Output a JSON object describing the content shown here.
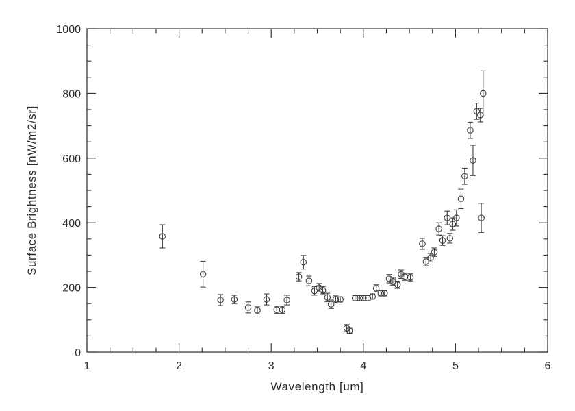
{
  "chart_data": {
    "type": "scatter",
    "title": "",
    "xlabel": "Wavelength [um]",
    "ylabel": "Surface Brightness [nW/m2/sr]",
    "xlim": [
      1,
      6
    ],
    "ylim": [
      0,
      1000
    ],
    "xticks": [
      1,
      2,
      3,
      4,
      5,
      6
    ],
    "yticks": [
      0,
      200,
      400,
      600,
      800,
      1000
    ],
    "x_minor_interval": 0.25,
    "y_minor_interval": 50,
    "grid": false,
    "legend": "none",
    "marker": "open-circle",
    "error_bars": true,
    "axis_color": "#2b2b2b",
    "marker_color": "#3d3d3d",
    "points": [
      {
        "x": 1.82,
        "y": 358,
        "e": 36
      },
      {
        "x": 2.26,
        "y": 241,
        "e": 40
      },
      {
        "x": 2.45,
        "y": 161,
        "e": 17
      },
      {
        "x": 2.6,
        "y": 163,
        "e": 13
      },
      {
        "x": 2.75,
        "y": 138,
        "e": 17
      },
      {
        "x": 2.85,
        "y": 129,
        "e": 11
      },
      {
        "x": 2.95,
        "y": 163,
        "e": 17
      },
      {
        "x": 3.06,
        "y": 131,
        "e": 11
      },
      {
        "x": 3.12,
        "y": 131,
        "e": 11
      },
      {
        "x": 3.17,
        "y": 161,
        "e": 15
      },
      {
        "x": 3.3,
        "y": 233,
        "e": 13
      },
      {
        "x": 3.35,
        "y": 278,
        "e": 21
      },
      {
        "x": 3.41,
        "y": 220,
        "e": 15
      },
      {
        "x": 3.47,
        "y": 189,
        "e": 13
      },
      {
        "x": 3.52,
        "y": 199,
        "e": 13
      },
      {
        "x": 3.56,
        "y": 191,
        "e": 11
      },
      {
        "x": 3.61,
        "y": 169,
        "e": 13
      },
      {
        "x": 3.65,
        "y": 148,
        "e": 13
      },
      {
        "x": 3.7,
        "y": 163,
        "e": 11
      },
      {
        "x": 3.75,
        "y": 163,
        "e": 8
      },
      {
        "x": 3.82,
        "y": 74,
        "e": 11
      },
      {
        "x": 3.85,
        "y": 66,
        "e": 8
      },
      {
        "x": 3.91,
        "y": 167,
        "e": 8
      },
      {
        "x": 3.96,
        "y": 167,
        "e": 8
      },
      {
        "x": 4.0,
        "y": 167,
        "e": 8
      },
      {
        "x": 4.05,
        "y": 167,
        "e": 8
      },
      {
        "x": 4.1,
        "y": 172,
        "e": 8
      },
      {
        "x": 4.14,
        "y": 197,
        "e": 11
      },
      {
        "x": 4.19,
        "y": 182,
        "e": 8
      },
      {
        "x": 4.23,
        "y": 182,
        "e": 8
      },
      {
        "x": 4.28,
        "y": 227,
        "e": 13
      },
      {
        "x": 4.32,
        "y": 218,
        "e": 11
      },
      {
        "x": 4.37,
        "y": 208,
        "e": 11
      },
      {
        "x": 4.41,
        "y": 241,
        "e": 13
      },
      {
        "x": 4.45,
        "y": 233,
        "e": 11
      },
      {
        "x": 4.51,
        "y": 231,
        "e": 11
      },
      {
        "x": 4.64,
        "y": 335,
        "e": 17
      },
      {
        "x": 4.68,
        "y": 280,
        "e": 13
      },
      {
        "x": 4.73,
        "y": 292,
        "e": 13
      },
      {
        "x": 4.77,
        "y": 309,
        "e": 13
      },
      {
        "x": 4.82,
        "y": 381,
        "e": 19
      },
      {
        "x": 4.86,
        "y": 345,
        "e": 15
      },
      {
        "x": 4.91,
        "y": 415,
        "e": 21
      },
      {
        "x": 4.94,
        "y": 352,
        "e": 15
      },
      {
        "x": 4.97,
        "y": 396,
        "e": 19
      },
      {
        "x": 5.01,
        "y": 415,
        "e": 25
      },
      {
        "x": 5.06,
        "y": 474,
        "e": 30
      },
      {
        "x": 5.1,
        "y": 544,
        "e": 25
      },
      {
        "x": 5.16,
        "y": 686,
        "e": 25
      },
      {
        "x": 5.19,
        "y": 593,
        "e": 47
      },
      {
        "x": 5.23,
        "y": 745,
        "e": 25
      },
      {
        "x": 5.27,
        "y": 733,
        "e": 21
      },
      {
        "x": 5.3,
        "y": 800,
        "e": 70
      },
      {
        "x": 5.28,
        "y": 415,
        "e": 45
      }
    ]
  }
}
